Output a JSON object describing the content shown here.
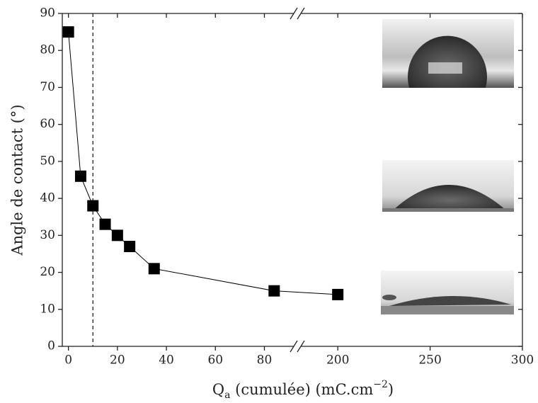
{
  "chart_data": {
    "type": "line",
    "y_label": "Angle de contact (°)",
    "x_label": {
      "main": "Q",
      "sub": "a",
      "rest": " (cumulée) (mC.cm",
      "sup": "−2",
      "end": ")"
    },
    "x": [
      0,
      5,
      10,
      15,
      20,
      25,
      35,
      84,
      200
    ],
    "values": [
      85,
      46,
      38,
      33,
      30,
      27,
      21,
      15,
      14
    ],
    "color": "#000000",
    "xlim": [
      [
        -2.5,
        92
      ],
      [
        180,
        300
      ]
    ],
    "xticks": [
      0,
      20,
      40,
      60,
      80,
      200,
      250,
      300
    ],
    "ylim": [
      0,
      90
    ],
    "yticks": [
      0,
      10,
      20,
      30,
      40,
      50,
      60,
      70,
      80,
      90
    ],
    "vline": 10,
    "axis_break": true
  }
}
